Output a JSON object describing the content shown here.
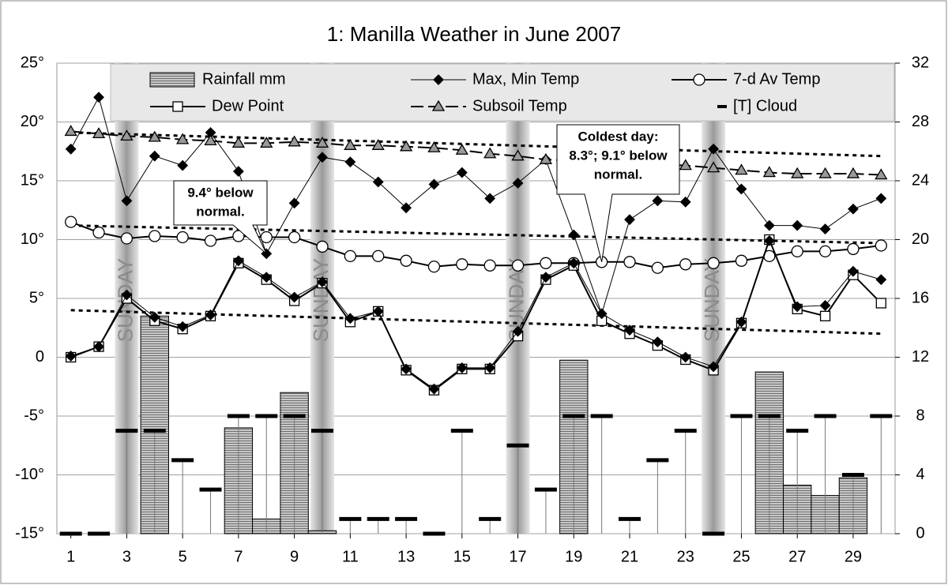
{
  "chart_data": {
    "type": "combo",
    "title": "1: Manilla Weather in June 2007",
    "x": [
      1,
      2,
      3,
      4,
      5,
      6,
      7,
      8,
      9,
      10,
      11,
      12,
      13,
      14,
      15,
      16,
      17,
      18,
      19,
      20,
      21,
      22,
      23,
      24,
      25,
      26,
      27,
      28,
      29,
      30
    ],
    "xlim": [
      0.5,
      30.5
    ],
    "xticks": [
      1,
      3,
      5,
      7,
      9,
      11,
      13,
      15,
      17,
      19,
      21,
      23,
      25,
      27,
      29
    ],
    "ylim": [
      -15,
      25
    ],
    "yticks": [
      {
        "value": -15,
        "label": "-15°"
      },
      {
        "value": -10,
        "label": "-10°"
      },
      {
        "value": -5,
        "label": "-5°"
      },
      {
        "value": 0,
        "label": "0"
      },
      {
        "value": 5,
        "label": "5°"
      },
      {
        "value": 10,
        "label": "10°"
      },
      {
        "value": 15,
        "label": "15°"
      },
      {
        "value": 20,
        "label": "20°"
      },
      {
        "value": 25,
        "label": "25°"
      }
    ],
    "y2lim": [
      0,
      32
    ],
    "y2ticks": [
      0,
      4,
      8,
      12,
      16,
      20,
      24,
      28,
      32
    ],
    "grid": true,
    "sundays": [
      3,
      10,
      17,
      24
    ],
    "sunday_label": "SUNDAY",
    "annotations": [
      {
        "lines": [
          "9.4° below",
          "normal."
        ]
      },
      {
        "lines": [
          "Coldest day:",
          "8.3°; 9.1° below",
          "normal."
        ]
      }
    ],
    "series": [
      {
        "name": "Rainfall mm",
        "type": "bar",
        "axis": "y2",
        "color": "#a6a6a6",
        "values": [
          0,
          0,
          0,
          14.8,
          0,
          0,
          7.2,
          1.0,
          9.6,
          0.2,
          0,
          0,
          0,
          0,
          0,
          0,
          0,
          0,
          11.8,
          0,
          0,
          0,
          0,
          0,
          0,
          11.0,
          3.3,
          2.6,
          3.8,
          0
        ]
      },
      {
        "name": "Max, Min Temp",
        "type": "line",
        "marker": "diamond",
        "color": "#000000",
        "width": 1,
        "values": [
          17.7,
          22.1,
          13.3,
          17.1,
          16.3,
          19.1,
          15.8,
          8.8,
          13.1,
          17.0,
          16.6,
          14.9,
          12.7,
          14.7,
          15.7,
          13.5,
          14.8,
          16.8,
          10.4,
          3.7,
          11.7,
          13.3,
          13.2,
          17.7,
          14.3,
          11.2,
          11.2,
          10.9,
          12.6,
          13.5
        ]
      },
      {
        "name": "7-d Av Temp",
        "type": "line",
        "marker": "circle",
        "color": "#000000",
        "width": 2,
        "values": [
          11.5,
          10.6,
          10.1,
          10.3,
          10.2,
          9.9,
          10.3,
          10.2,
          10.2,
          9.4,
          8.6,
          8.6,
          8.2,
          7.7,
          7.9,
          7.8,
          7.8,
          8.0,
          8.0,
          8.1,
          8.1,
          7.6,
          7.9,
          8.0,
          8.2,
          8.6,
          9.0,
          9.0,
          9.2,
          9.5
        ]
      },
      {
        "name": "Dew Point",
        "type": "line",
        "marker": "square",
        "color": "#000000",
        "width": 2,
        "values": [
          0,
          0.9,
          5.0,
          3.1,
          2.4,
          3.5,
          8.0,
          6.6,
          4.8,
          6.3,
          3.0,
          3.9,
          -1.1,
          -2.8,
          -1.0,
          -1.0,
          1.8,
          6.6,
          7.8,
          3.1,
          2.0,
          1.0,
          -0.2,
          -1.1,
          2.9,
          10.0,
          4.1,
          3.5,
          7.0,
          4.6
        ]
      },
      {
        "name": "Subsoil Temp",
        "type": "line",
        "marker": "triangle",
        "color": "#000000",
        "width": 2,
        "dashed": true,
        "values": [
          19.2,
          19.0,
          18.8,
          18.7,
          18.5,
          18.4,
          18.2,
          18.2,
          18.3,
          18.2,
          18.0,
          18.0,
          17.9,
          17.8,
          17.6,
          17.3,
          17.1,
          16.8,
          16.7,
          16.6,
          16.5,
          16.4,
          16.3,
          16.1,
          15.9,
          15.7,
          15.6,
          15.6,
          15.6,
          15.5
        ]
      },
      {
        "name": "[T] Cloud",
        "type": "dash",
        "axis": "y2",
        "color": "#000000",
        "values": [
          0,
          0,
          7,
          7,
          5,
          3,
          8,
          8,
          8,
          7,
          1,
          1,
          1,
          0,
          7,
          1,
          6,
          3,
          8,
          8,
          1,
          5,
          7,
          0,
          8,
          8,
          7,
          8,
          4,
          8
        ]
      },
      {
        "type": "line",
        "marker": "diamond",
        "color": "#000000",
        "width": 1,
        "values": [
          0.1,
          0.9,
          5.3,
          3.4,
          2.6,
          3.6,
          8.2,
          6.8,
          5.1,
          6.4,
          3.3,
          3.9,
          -1.0,
          -2.7,
          -0.9,
          -0.9,
          2.2,
          6.8,
          8.0,
          3.7,
          2.3,
          1.3,
          0,
          -0.8,
          3.0,
          9.9,
          4.3,
          4.4,
          7.3,
          6.6
        ]
      },
      {
        "type": "dotted",
        "color": "#000000",
        "x": [
          1,
          30
        ],
        "values": [
          19.1,
          17.1
        ]
      },
      {
        "type": "dotted",
        "color": "#000000",
        "x": [
          1,
          30
        ],
        "values": [
          11.2,
          9.7
        ]
      },
      {
        "type": "dotted",
        "color": "#000000",
        "x": [
          1,
          30
        ],
        "values": [
          4.0,
          2.0
        ]
      }
    ]
  }
}
